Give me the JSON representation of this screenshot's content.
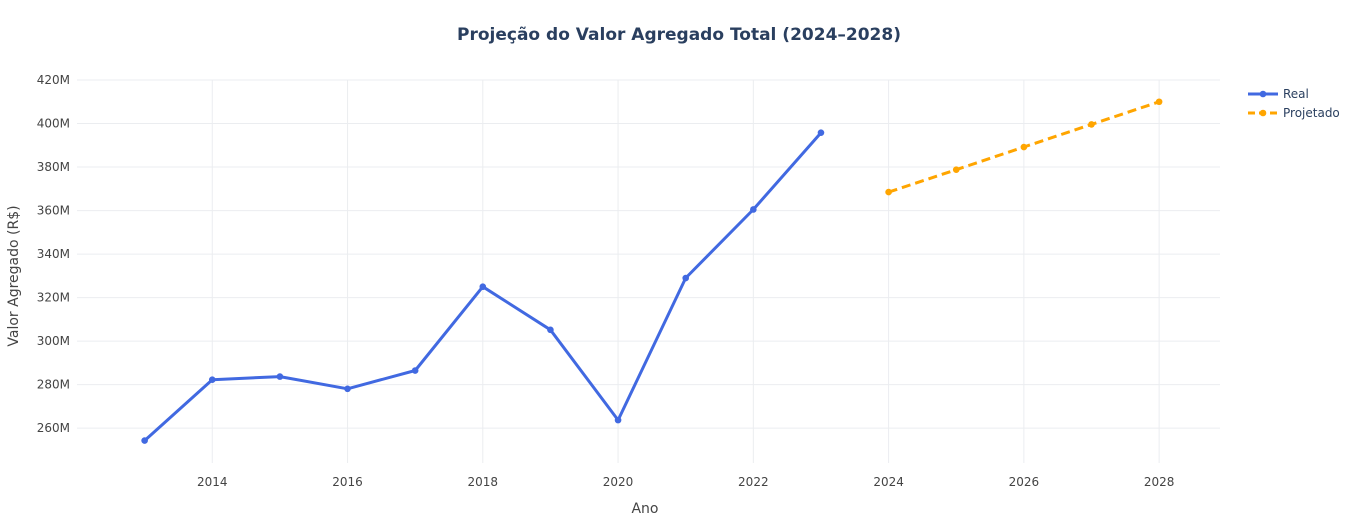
{
  "chart_data": {
    "type": "line",
    "title": "Projeção do Valor Agregado Total (2024–2028)",
    "xlabel": "Ano",
    "ylabel": "Valor Agregado (R$)",
    "xlim": [
      2012,
      2028.9
    ],
    "ylim": [
      244,
      420
    ],
    "x_ticks": [
      2014,
      2016,
      2018,
      2020,
      2022,
      2024,
      2026,
      2028
    ],
    "y_ticks": [
      260,
      280,
      300,
      320,
      340,
      360,
      380,
      400,
      420
    ],
    "y_tick_labels": [
      "260M",
      "280M",
      "300M",
      "320M",
      "340M",
      "360M",
      "380M",
      "400M",
      "420M"
    ],
    "grid": true,
    "legend_position": "top-right",
    "series": [
      {
        "name": "Real",
        "color": "#4169e1",
        "dash": "solid",
        "x": [
          2013,
          2014,
          2015,
          2016,
          2017,
          2018,
          2019,
          2020,
          2021,
          2022,
          2023
        ],
        "y": [
          254.3,
          282.3,
          283.7,
          278.1,
          286.5,
          325.0,
          305.2,
          263.7,
          329.0,
          360.5,
          395.8
        ]
      },
      {
        "name": "Projetado",
        "color": "#ffa500",
        "dash": "dash",
        "x": [
          2024,
          2025,
          2026,
          2027,
          2028
        ],
        "y": [
          368.5,
          378.8,
          389.2,
          399.6,
          410.0
        ]
      }
    ]
  }
}
